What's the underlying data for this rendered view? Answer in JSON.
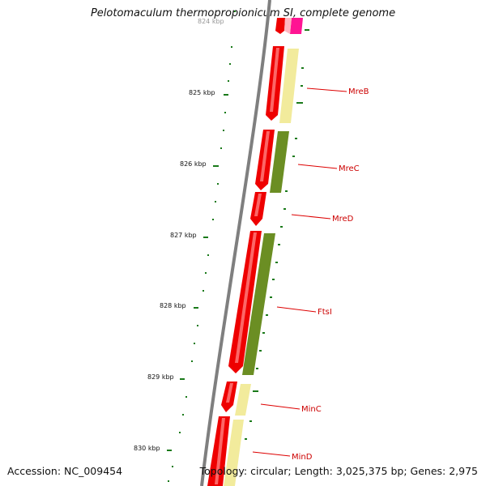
{
  "title": "Pelotomaculum thermopropionicum SI, complete genome",
  "footer": {
    "accession": "Accession: NC_009454",
    "topology": "Topology: circular; Length: 3,025,375 bp; Genes: 2,975"
  },
  "ruler": {
    "top_label": "824 kbp",
    "labels": [
      "825 kbp",
      "826 kbp",
      "827 kbp",
      "828 kbp",
      "829 kbp",
      "830 kbp"
    ]
  },
  "genes": [
    {
      "name": "MreB",
      "label": "MreB"
    },
    {
      "name": "MreC",
      "label": "MreC"
    },
    {
      "name": "MreD",
      "label": "MreD"
    },
    {
      "name": "FtsI",
      "label": "FtsI"
    },
    {
      "name": "MinC",
      "label": "MinC"
    },
    {
      "name": "MinD",
      "label": "MinD"
    }
  ],
  "colors": {
    "cds_red": "#ee0000",
    "cds_highlight": "#ff7777",
    "pale_yellow": "#f2eb9c",
    "olive": "#6b8e23",
    "magenta": "#ff1493",
    "backbone": "#888888",
    "tick_green": "#1a7a1a",
    "label_red": "#cc0000"
  }
}
